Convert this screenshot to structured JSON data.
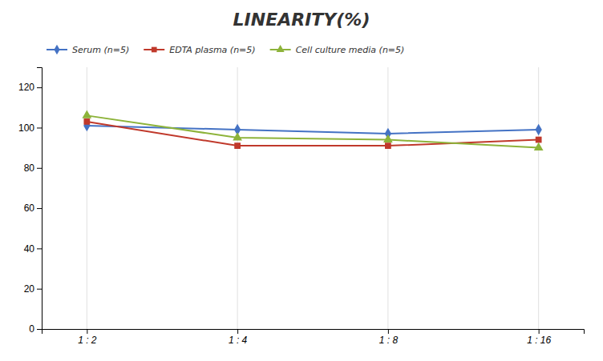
{
  "chart_data": {
    "type": "line",
    "title": "LINEARITY(%)",
    "categories": [
      "1 : 2",
      "1 : 4",
      "1 : 8",
      "1 : 16"
    ],
    "series": [
      {
        "name": "Serum (n=5)",
        "color": "#4472C4",
        "marker": "diamond",
        "line_style": "solid",
        "values": [
          101,
          99,
          97,
          99
        ]
      },
      {
        "name": "EDTA plasma (n=5)",
        "color": "#C0392B",
        "marker": "square",
        "line_style": "solid",
        "values": [
          103,
          91,
          91,
          94
        ]
      },
      {
        "name": "Cell culture media (n=5)",
        "color": "#8DB33A",
        "marker": "triangle",
        "line_style": "solid",
        "values": [
          106,
          95,
          94,
          90
        ]
      }
    ],
    "ylim": [
      0,
      130
    ],
    "yticks": [
      0,
      20,
      40,
      60,
      80,
      100,
      120
    ],
    "grid": "x",
    "legend": "upper left"
  }
}
